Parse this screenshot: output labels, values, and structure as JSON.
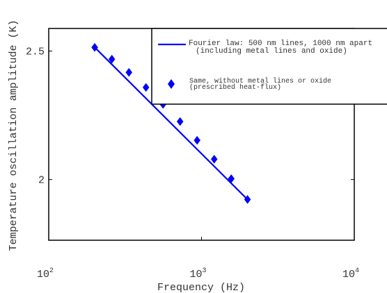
{
  "chart_data": {
    "type": "line",
    "title": "",
    "xlabel": "Frequency (Hz)",
    "ylabel": "Temperature oscillation amplitude (K)",
    "xscale": "log",
    "yscale": "log",
    "xlim": [
      100,
      10000
    ],
    "ylim": [
      1.8,
      2.6
    ],
    "xticks": [
      {
        "value": 100,
        "base": "10",
        "exp": "2"
      },
      {
        "value": 1000,
        "base": "10",
        "exp": "3"
      },
      {
        "value": 10000,
        "base": "10",
        "exp": "4"
      }
    ],
    "yticks": [
      {
        "value": 2.5,
        "label": "2.5"
      },
      {
        "value": 2.0,
        "label": "2"
      }
    ],
    "grid": false,
    "legend_position": "top-right",
    "series": [
      {
        "name": "Fourier law: 500 nm lines, 1000 nm apart (including metal lines and oxide)",
        "legend_lines": [
          "Fourier law: 500 nm lines, 1000 nm apart",
          "(including metal lines and oxide)"
        ],
        "style": "line",
        "color": "#0000ff",
        "x": [
          200,
          2000
        ],
        "y": [
          2.516,
          1.932
        ]
      },
      {
        "name": "Same, without metal lines or oxide (prescribed heat-flux)",
        "legend_lines": [
          "Same, without metal lines or oxide",
          "(prescribed heat-flux)"
        ],
        "style": "marker",
        "marker": "diamond",
        "color": "#0000ff",
        "x": [
          200,
          259,
          335,
          433,
          560,
          724,
          936,
          1211,
          1566,
          2000
        ],
        "y": [
          2.516,
          2.465,
          2.409,
          2.347,
          2.279,
          2.212,
          2.141,
          2.072,
          2.003,
          1.932
        ]
      }
    ]
  }
}
